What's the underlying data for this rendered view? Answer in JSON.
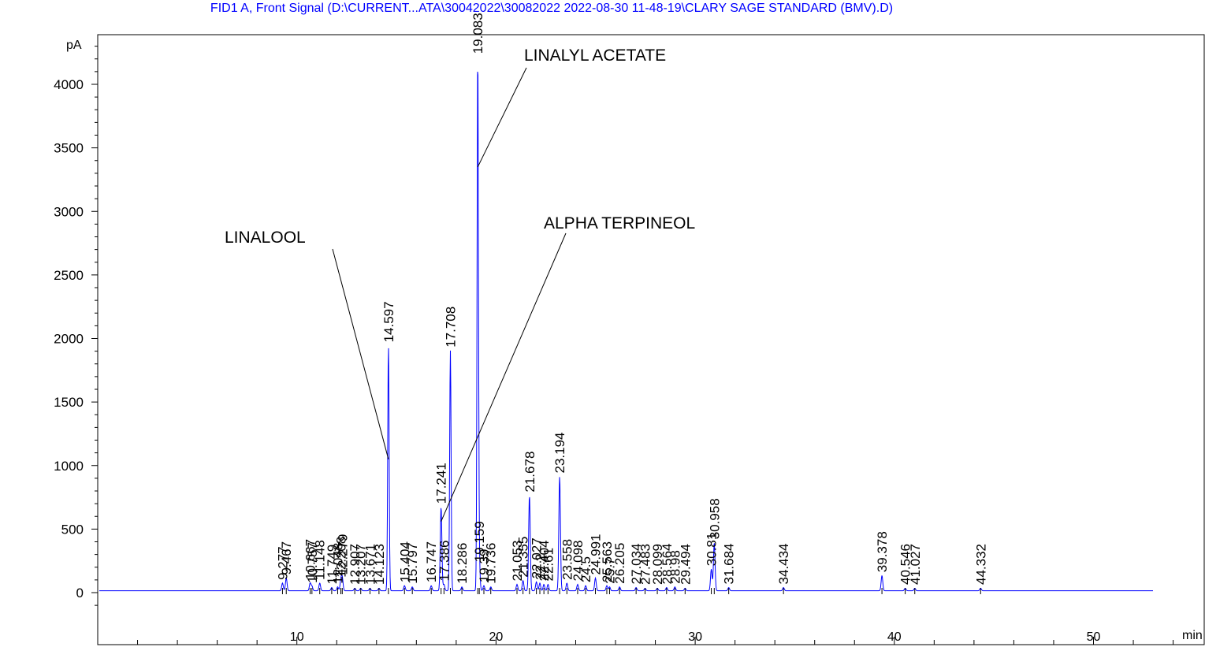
{
  "chart_data": {
    "type": "line",
    "title": "FID1 A, Front Signal (D:\\CURRENT...ATA\\30042022\\30082022 2022-08-30 11-48-19\\CLARY SAGE STANDARD (BMV).D)",
    "ylabel": "pA",
    "xlabel": "min",
    "xlim": [
      0,
      53
    ],
    "ylim": [
      -100,
      4400
    ],
    "x_ticks": [
      "10",
      "20",
      "30",
      "40",
      "50"
    ],
    "y_ticks": [
      "0",
      "500",
      "1000",
      "1500",
      "2000",
      "2500",
      "3000",
      "3500",
      "4000"
    ],
    "baseline": 15,
    "line_color": "#0000ff",
    "peaks": [
      {
        "rt": 9.277,
        "label": "9.277",
        "height": 60
      },
      {
        "rt": 9.467,
        "label": "9.467",
        "height": 100
      },
      {
        "rt": 10.667,
        "label": "10.667",
        "height": 60
      },
      {
        "rt": 10.757,
        "label": "10.757",
        "height": 35
      },
      {
        "rt": 11.148,
        "label": "11.148",
        "height": 60
      },
      {
        "rt": 11.749,
        "label": "11.749",
        "height": 25
      },
      {
        "rt": 12.048,
        "label": "12.048",
        "height": 30
      },
      {
        "rt": 12.208,
        "label": "12.208",
        "height": 80
      },
      {
        "rt": 12.279,
        "label": "12.279",
        "height": 100
      },
      {
        "rt": 12.907,
        "label": "12.907",
        "height": 20
      },
      {
        "rt": 13.207,
        "label": "13.207",
        "height": 20
      },
      {
        "rt": 13.671,
        "label": "13.671",
        "height": 20
      },
      {
        "rt": 14.123,
        "label": "14.123",
        "height": 20
      },
      {
        "rt": 14.597,
        "label": "14.597",
        "height": 1930
      },
      {
        "rt": 15.404,
        "label": "15.404",
        "height": 40
      },
      {
        "rt": 15.797,
        "label": "15.797",
        "height": 30
      },
      {
        "rt": 16.747,
        "label": "16.747",
        "height": 40
      },
      {
        "rt": 17.241,
        "label": "17.241",
        "height": 660
      },
      {
        "rt": 17.386,
        "label": "17.386",
        "height": 50
      },
      {
        "rt": 17.708,
        "label": "17.708",
        "height": 1890
      },
      {
        "rt": 18.286,
        "label": "18.286",
        "height": 30
      },
      {
        "rt": 19.083,
        "label": "19.083",
        "height": 4200
      },
      {
        "rt": 19.159,
        "label": "19.159",
        "height": 200
      },
      {
        "rt": 19.39,
        "label": "19.39",
        "height": 40
      },
      {
        "rt": 19.736,
        "label": "19.736",
        "height": 30
      },
      {
        "rt": 21.053,
        "label": "21.053",
        "height": 50
      },
      {
        "rt": 21.355,
        "label": "21.355",
        "height": 80
      },
      {
        "rt": 21.678,
        "label": "21.678",
        "height": 750
      },
      {
        "rt": 22.027,
        "label": "22.027",
        "height": 70
      },
      {
        "rt": 22.2,
        "label": "22.2",
        "height": 60
      },
      {
        "rt": 22.404,
        "label": "22.404",
        "height": 50
      },
      {
        "rt": 22.61,
        "label": "22.61",
        "height": 50
      },
      {
        "rt": 23.194,
        "label": "23.194",
        "height": 900
      },
      {
        "rt": 23.558,
        "label": "23.558",
        "height": 60
      },
      {
        "rt": 24.098,
        "label": "24.098",
        "height": 50
      },
      {
        "rt": 24.5,
        "label": "24.5",
        "height": 40
      },
      {
        "rt": 24.991,
        "label": "24.991",
        "height": 100
      },
      {
        "rt": 25.563,
        "label": "25.563",
        "height": 40
      },
      {
        "rt": 25.7,
        "label": "25.7",
        "height": 30
      },
      {
        "rt": 26.205,
        "label": "26.205",
        "height": 30
      },
      {
        "rt": 27.034,
        "label": "27.034",
        "height": 25
      },
      {
        "rt": 27.483,
        "label": "27.483",
        "height": 20
      },
      {
        "rt": 28.099,
        "label": "28.099",
        "height": 20
      },
      {
        "rt": 28.564,
        "label": "28.564",
        "height": 25
      },
      {
        "rt": 28.98,
        "label": "28.98",
        "height": 30
      },
      {
        "rt": 29.494,
        "label": "29.494",
        "height": 20
      },
      {
        "rt": 30.81,
        "label": "30.81",
        "height": 170
      },
      {
        "rt": 30.958,
        "label": "30.958",
        "height": 380
      },
      {
        "rt": 31.684,
        "label": "31.684",
        "height": 25
      },
      {
        "rt": 34.434,
        "label": "34.434",
        "height": 25
      },
      {
        "rt": 39.378,
        "label": "39.378",
        "height": 120
      },
      {
        "rt": 40.546,
        "label": "40.546",
        "height": 20
      },
      {
        "rt": 41.027,
        "label": "41.027",
        "height": 20
      },
      {
        "rt": 44.332,
        "label": "44.332",
        "height": 20
      }
    ],
    "annotations": [
      {
        "text": "LINALOOL",
        "peak_rt": 14.597,
        "peak_y": 1050
      },
      {
        "text": "LINALYL ACETATE",
        "peak_rt": 19.083,
        "peak_y": 3350
      },
      {
        "text": "ALPHA TERPINEOL",
        "peak_rt": 17.241,
        "peak_y": 560
      }
    ]
  }
}
